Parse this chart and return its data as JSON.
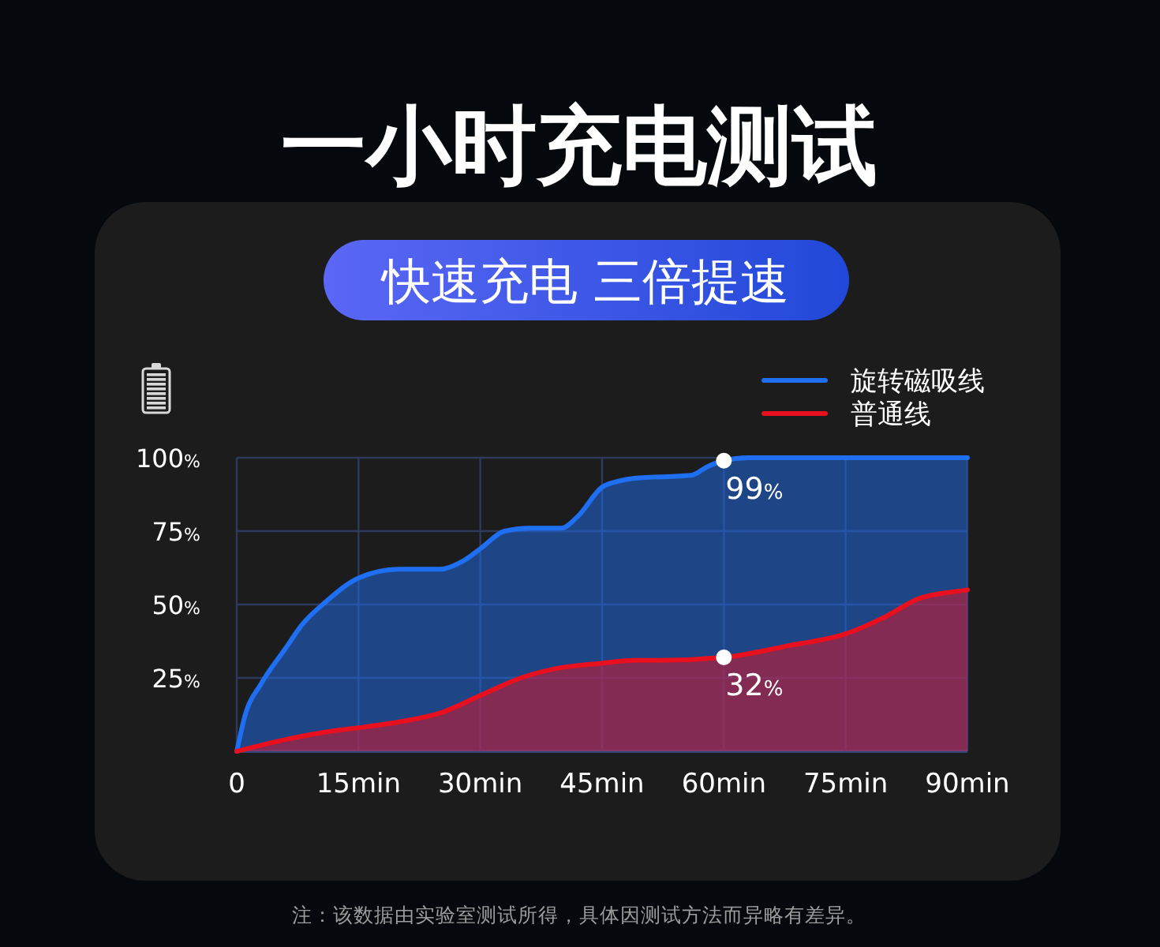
{
  "chart_data": {
    "type": "area",
    "title": "一小时充电测试",
    "subtitle": "快速充电 三倍提速",
    "xlim": [
      0,
      90
    ],
    "xticks": [
      0,
      {
        "value": 15,
        "label": "15min"
      },
      {
        "value": 30,
        "label": "30min"
      },
      {
        "value": 45,
        "label": "45min"
      },
      {
        "value": 60,
        "label": "60min"
      },
      {
        "value": 75,
        "label": "75min"
      },
      {
        "value": 90,
        "label": "90min"
      }
    ],
    "ylim": [
      0,
      100
    ],
    "yticks": [
      {
        "value": 25,
        "label": "25%"
      },
      {
        "value": 50,
        "label": "50%"
      },
      {
        "value": 75,
        "label": "75%"
      },
      {
        "value": 100,
        "label": "100%"
      }
    ],
    "grid": true,
    "legend": "top right",
    "series": [
      {
        "name": "旋转磁吸线",
        "color": "#1f6ff2",
        "x": [
          0,
          1,
          3,
          6,
          8,
          11,
          15,
          20,
          25,
          28,
          30,
          33,
          36,
          40,
          42,
          45,
          47,
          49,
          56,
          58,
          60,
          63,
          90
        ],
        "values": [
          0,
          12,
          23,
          35,
          43,
          51,
          59,
          62,
          62,
          65,
          69,
          75,
          76,
          76,
          80,
          90,
          92,
          93,
          94,
          97,
          99,
          100,
          100
        ],
        "value_labels": [
          null,
          null,
          null,
          null,
          null,
          null,
          null,
          null,
          null,
          null,
          null,
          null,
          null,
          null,
          null,
          null,
          null,
          null,
          null,
          null,
          "99%",
          null,
          null
        ]
      },
      {
        "name": "普通线",
        "color": "#e8101e",
        "x": [
          0,
          6,
          12,
          15,
          20,
          25,
          30,
          35,
          39,
          45,
          49,
          52,
          60,
          68,
          75,
          80,
          84,
          90
        ],
        "values": [
          0,
          4,
          7,
          8,
          10,
          13,
          19,
          25,
          28,
          30,
          31,
          31,
          32,
          36,
          40,
          46,
          52,
          55
        ],
        "value_labels": [
          null,
          null,
          null,
          null,
          null,
          null,
          null,
          null,
          null,
          null,
          null,
          null,
          "32%",
          null,
          null,
          null,
          null,
          null
        ]
      }
    ],
    "annotations": [
      "注：该数据由实验室测试所得，具体因测试方法而异略有差异。"
    ]
  }
}
